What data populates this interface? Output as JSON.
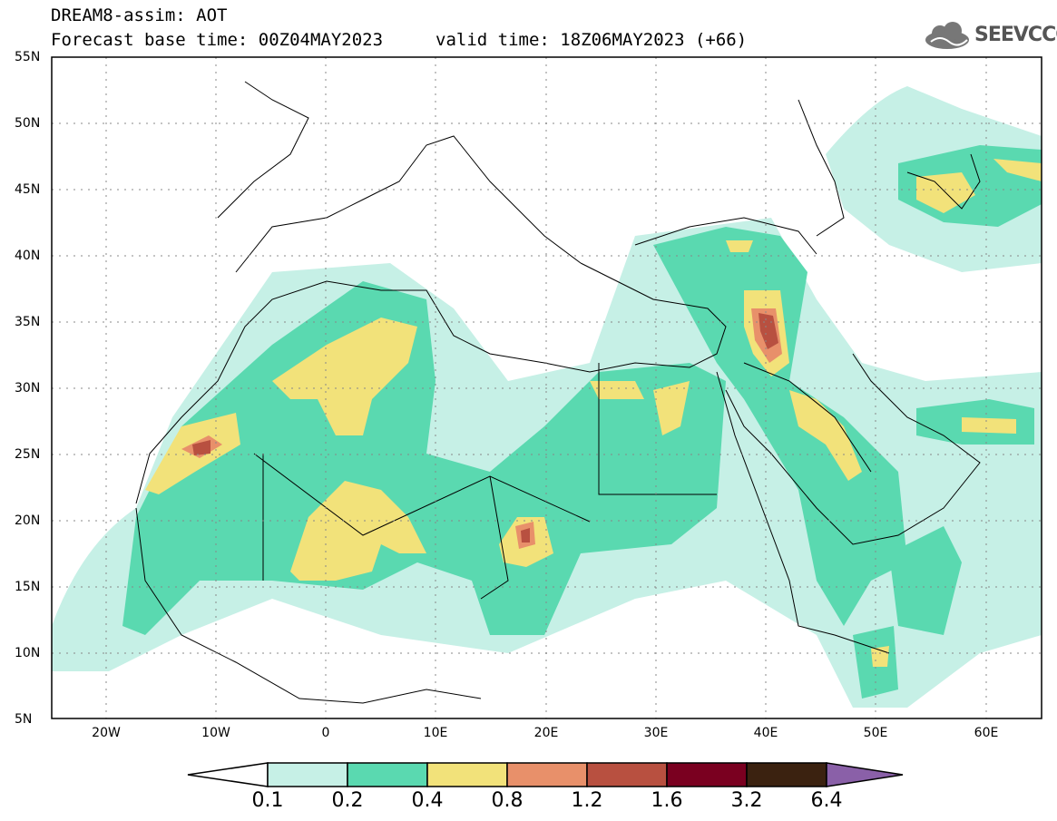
{
  "title": {
    "line1": "DREAM8-assim: AOT",
    "line2": "Forecast base time: 00Z04MAY2023",
    "valid": "valid time: 18Z06MAY2023 (+66)"
  },
  "logo": {
    "text": "SEEVCCC",
    "icon": "cloud-icon"
  },
  "axes": {
    "lat_labels": [
      "55N",
      "50N",
      "45N",
      "40N",
      "35N",
      "30N",
      "25N",
      "20N",
      "15N",
      "10N",
      "5N"
    ],
    "lon_labels": [
      "20W",
      "10W",
      "0",
      "10E",
      "20E",
      "30E",
      "40E",
      "50E",
      "60E"
    ],
    "lon_range": [
      -25,
      65
    ],
    "lat_range": [
      5,
      55
    ],
    "grid": "dotted"
  },
  "colorbar": {
    "labels": [
      "0.1",
      "0.2",
      "0.4",
      "0.8",
      "1.2",
      "1.6",
      "3.2",
      "6.4"
    ],
    "colors": [
      "#ffffff",
      "#c6f0e6",
      "#5ad9b0",
      "#f2e27a",
      "#e8906a",
      "#b85040",
      "#7a0020",
      "#3b2210",
      "#8a60a8"
    ]
  }
}
